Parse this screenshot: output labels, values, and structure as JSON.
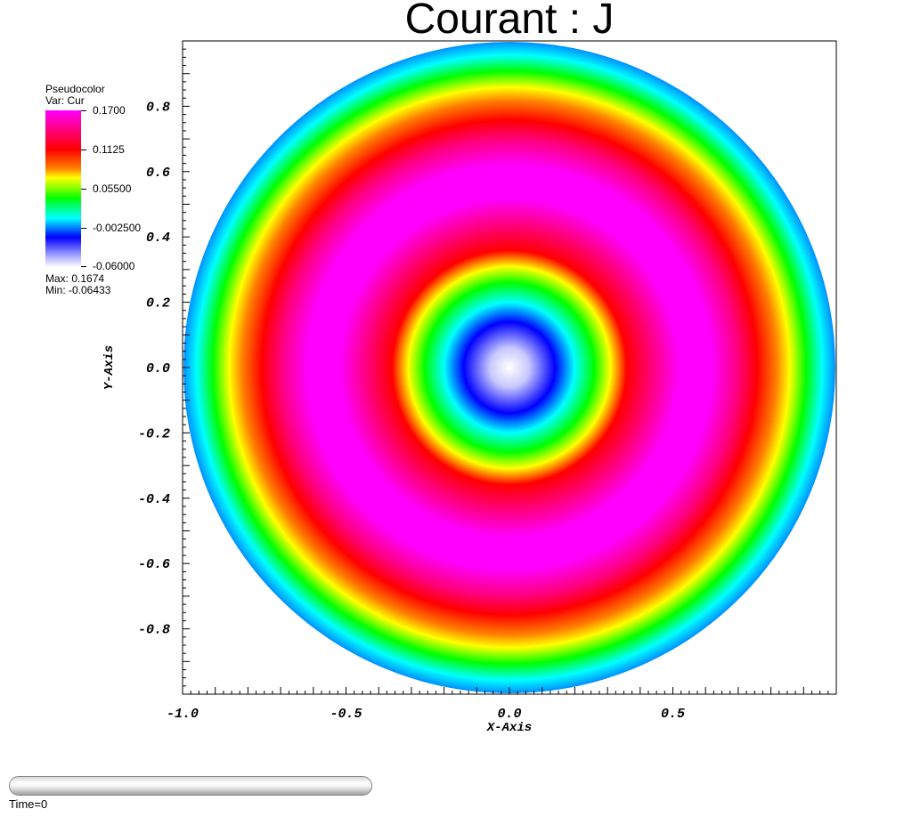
{
  "chart_data": {
    "type": "heatmap",
    "title": "Courant : J",
    "xlabel": "X-Axis",
    "ylabel": "Y-Axis",
    "xlim": [
      -1.0,
      1.0
    ],
    "ylim": [
      -1.0,
      1.0
    ],
    "x_ticks": [
      -1.0,
      -0.5,
      0.0,
      0.5
    ],
    "x_tick_labels": [
      "-1.0",
      "-0.5",
      "0.0",
      "0.5"
    ],
    "y_ticks": [
      0.8,
      0.6,
      0.4,
      0.2,
      0.0,
      -0.2,
      -0.4,
      -0.6,
      -0.8
    ],
    "y_tick_labels": [
      "0.8",
      "0.6",
      "0.4",
      "0.2",
      "0.0",
      "-0.2",
      "-0.4",
      "-0.6",
      "-0.8"
    ],
    "domain": "disk of radius 1 centered at origin",
    "radial_profile": [
      {
        "r": 0.0,
        "value": -0.0643
      },
      {
        "r": 0.1,
        "value": -0.03
      },
      {
        "r": 0.2,
        "value": 0.0
      },
      {
        "r": 0.28,
        "value": 0.055
      },
      {
        "r": 0.35,
        "value": 0.112
      },
      {
        "r": 0.45,
        "value": 0.16
      },
      {
        "r": 0.55,
        "value": 0.167
      },
      {
        "r": 0.65,
        "value": 0.15
      },
      {
        "r": 0.75,
        "value": 0.112
      },
      {
        "r": 0.85,
        "value": 0.07
      },
      {
        "r": 0.95,
        "value": 0.02
      },
      {
        "r": 1.0,
        "value": -0.002
      }
    ],
    "colorbar": {
      "header": "Pseudocolor",
      "var": "Var: Cur",
      "ticks": [
        "0.1700",
        "0.1125",
        "0.05500",
        "-0.002500",
        "-0.06000"
      ],
      "max_label": "Max:  0.1674",
      "min_label": "Min: -0.06433",
      "colors": [
        "#ff00ff",
        "#ff0000",
        "#ffff00",
        "#00ff00",
        "#00ffff",
        "#0000ff",
        "#ffffff"
      ]
    },
    "grid": false,
    "legend_position": "top-left"
  },
  "footer": {
    "time_label": "Time=0"
  }
}
